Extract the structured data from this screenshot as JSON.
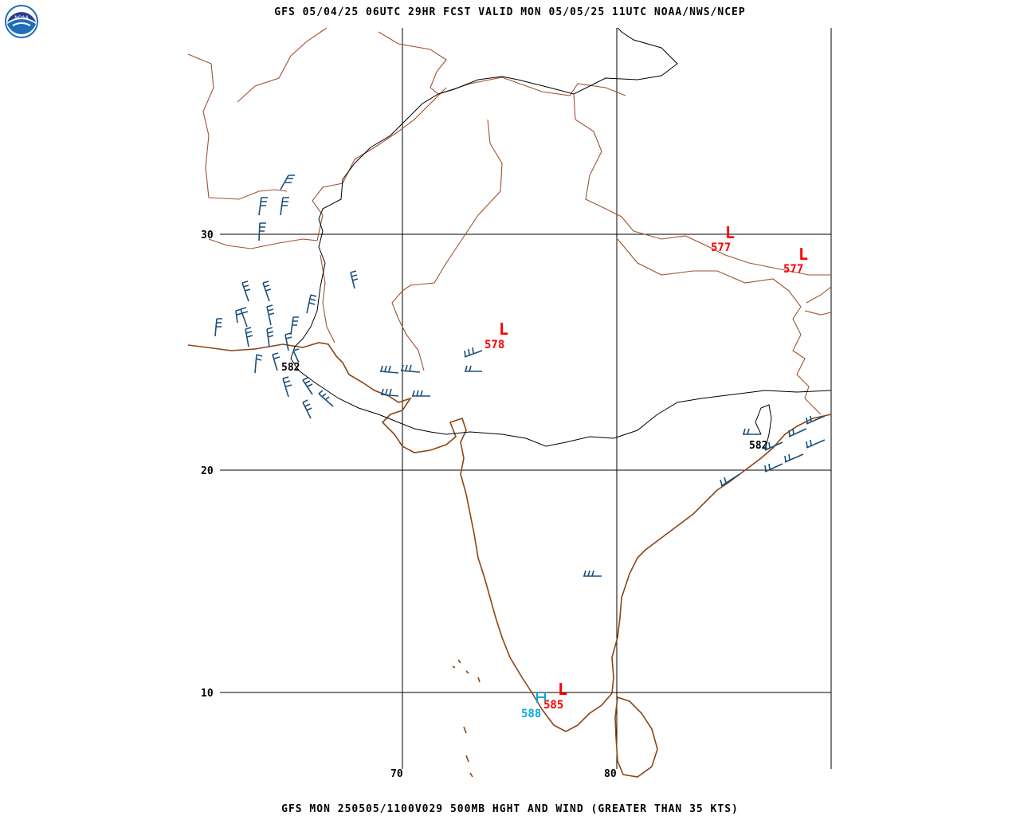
{
  "header": {
    "title": "GFS 05/04/25 06UTC 29HR FCST VALID MON 05/05/25 11UTC NOAA/NWS/NCEP",
    "footer": "GFS MON 250505/1100V029 500MB HGHT AND WIND (GREATER THAN 35 KTS)"
  },
  "logo": {
    "name": "noaa-logo",
    "text": "NOAA"
  },
  "latitude_labels": [
    "30",
    "20",
    "10"
  ],
  "longitude_labels": [
    "70",
    "80"
  ],
  "contour_labels": [
    {
      "text": "582",
      "color": "#000000"
    },
    {
      "text": "582",
      "color": "#000000"
    }
  ],
  "systems": [
    {
      "letter": "L",
      "value": "577",
      "color": "#ff0000"
    },
    {
      "letter": "L",
      "value": "577",
      "color": "#ff0000"
    },
    {
      "letter": "L",
      "value": "578",
      "color": "#ff0000"
    },
    {
      "letter": "L",
      "value": "585",
      "color": "#ff0000"
    }
  ],
  "high_value": {
    "value": "588",
    "color": "#00aadd"
  },
  "colors": {
    "coastline": "#8b4513",
    "borders": "#a0522d",
    "grid": "#000000",
    "contour": "#000000",
    "barbs": "#1a4f7a",
    "low": "#ff0000",
    "high": "#00aadd"
  }
}
